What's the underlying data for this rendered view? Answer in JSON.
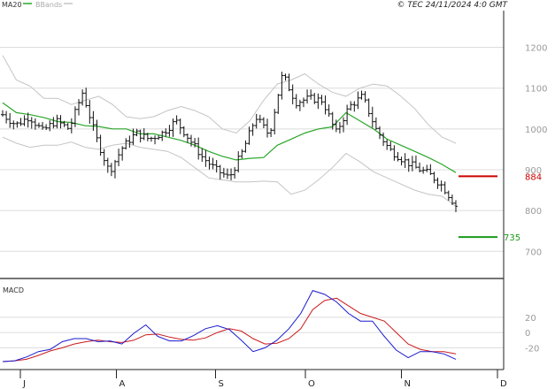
{
  "header": {
    "legend": [
      {
        "label": "MA20",
        "color": "#2aa62a"
      },
      {
        "label": "BBands",
        "color": "#c0c0c0"
      }
    ],
    "copyright": "© TEC 24/11/2024 4:0 GMT"
  },
  "chart_data": [
    {
      "type": "candlestick",
      "title": "",
      "ylim": [
        640,
        1290
      ],
      "y_ticks": [
        700,
        800,
        900,
        1000,
        1100,
        1200
      ],
      "x_labels": [
        "J",
        "A",
        "S",
        "O",
        "N",
        "D"
      ],
      "x_label_dates": [
        "2024-07-01",
        "2024-08-01",
        "2024-09-02",
        "2024-10-01",
        "2024-11-01",
        "2024-12-02"
      ],
      "grid": true,
      "price_start": 1035,
      "price_end": 812,
      "price_path": [
        1035,
        1010,
        1030,
        995,
        1020,
        1000,
        1090,
        980,
        895,
        955,
        990,
        975,
        990,
        1020,
        975,
        930,
        900,
        880,
        945,
        1030,
        985,
        1135,
        1065,
        1075,
        1070,
        990,
        1055,
        1080,
        1000,
        950,
        925,
        905,
        890,
        860,
        812
      ],
      "series": [
        {
          "name": "MA20",
          "color": "#2aa62a",
          "values": [
            1064,
            1040,
            1035,
            1028,
            1018,
            1016,
            1008,
            1006,
            1000,
            1000,
            988,
            988,
            980,
            972,
            960,
            945,
            933,
            924,
            928,
            930,
            960,
            975,
            990,
            1000,
            1005,
            1040,
            1020,
            1000,
            975,
            960,
            945,
            930,
            913,
            893
          ]
        },
        {
          "name": "BBands-upper",
          "color": "#c0c0c0",
          "values": [
            1180,
            1120,
            1105,
            1075,
            1075,
            1060,
            1070,
            1080,
            1060,
            1030,
            1025,
            1030,
            1045,
            1055,
            1045,
            1030,
            1000,
            990,
            1020,
            1070,
            1110,
            1120,
            1135,
            1110,
            1090,
            1080,
            1100,
            1110,
            1105,
            1080,
            1050,
            1010,
            980,
            965
          ]
        },
        {
          "name": "BBands-lower",
          "color": "#c0c0c0",
          "values": [
            980,
            965,
            955,
            960,
            960,
            968,
            955,
            950,
            960,
            965,
            955,
            950,
            945,
            930,
            905,
            880,
            875,
            870,
            870,
            872,
            870,
            840,
            850,
            875,
            905,
            940,
            920,
            895,
            880,
            865,
            850,
            840,
            835,
            810
          ]
        }
      ],
      "levels": [
        {
          "label": "884",
          "value": 884,
          "color": "#cc0000"
        },
        {
          "label": "735",
          "value": 735,
          "color": "#1a9a1a"
        }
      ]
    },
    {
      "type": "line",
      "title": "MACD",
      "ylim": [
        -45,
        65
      ],
      "y_ticks": [
        -20,
        0,
        20
      ],
      "y_tick_labels": [
        "-20",
        "0",
        "20"
      ],
      "grid": true,
      "series": [
        {
          "name": "MACD",
          "color": "#1a1ad0",
          "values": [
            -38,
            -37,
            -32,
            -25,
            -22,
            -12,
            -8,
            -8,
            -12,
            -11,
            -15,
            -1,
            10,
            -5,
            -11,
            -11,
            -4,
            5,
            9,
            4,
            -10,
            -25,
            -20,
            -10,
            5,
            25,
            55,
            50,
            40,
            25,
            15,
            15,
            -5,
            -23,
            -33,
            -25,
            -25,
            -28,
            -35
          ]
        },
        {
          "name": "Signal",
          "color": "#cc1a1a",
          "values": [
            -38,
            -37,
            -35,
            -30,
            -24,
            -20,
            -15,
            -12,
            -10,
            -12,
            -13,
            -10,
            -3,
            -2,
            -6,
            -9,
            -10,
            -7,
            0,
            5,
            2,
            -8,
            -15,
            -14,
            -8,
            5,
            30,
            42,
            45,
            35,
            25,
            20,
            15,
            0,
            -15,
            -22,
            -25,
            -25,
            -28
          ]
        }
      ]
    }
  ]
}
